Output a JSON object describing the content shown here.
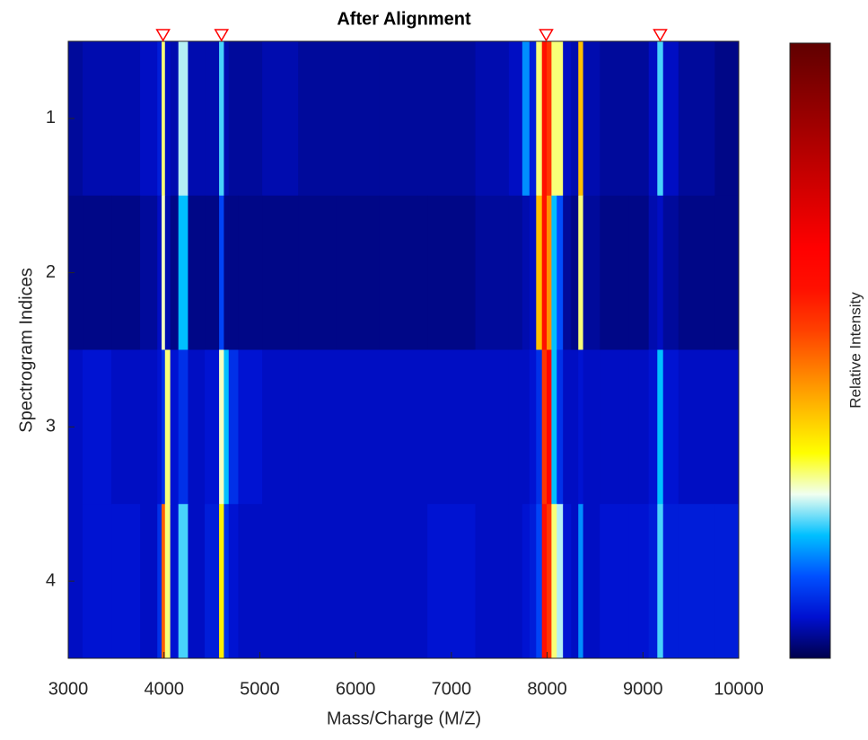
{
  "chart_data": {
    "type": "heatmap",
    "title": "After Alignment",
    "xlabel": "Mass/Charge (M/Z)",
    "ylabel": "Spectrogram Indices",
    "colorbar_label": "Relative Intensity",
    "x": [
      3000,
      3300,
      3600,
      3900,
      3960,
      3990,
      4030,
      4100,
      4200,
      4300,
      4550,
      4600,
      4650,
      4700,
      4850,
      5200,
      5600,
      6000,
      6500,
      7000,
      7500,
      7700,
      7780,
      7850,
      7920,
      7970,
      8020,
      8070,
      8130,
      8200,
      8300,
      8350,
      8400,
      8700,
      9000,
      9120,
      9180,
      9240,
      9500,
      10000
    ],
    "y": [
      1,
      2,
      3,
      4
    ],
    "z": [
      [
        0.04,
        0.05,
        0.05,
        0.06,
        0.08,
        0.3,
        0.06,
        0.05,
        0.25,
        0.05,
        0.05,
        0.22,
        0.05,
        0.04,
        0.04,
        0.05,
        0.04,
        0.04,
        0.04,
        0.04,
        0.05,
        0.06,
        0.17,
        0.08,
        0.3,
        0.6,
        0.55,
        0.3,
        0.3,
        0.06,
        0.05,
        0.4,
        0.05,
        0.04,
        0.04,
        0.06,
        0.22,
        0.06,
        0.04,
        0.03
      ],
      [
        0.03,
        0.03,
        0.03,
        0.04,
        0.06,
        0.28,
        0.05,
        0.03,
        0.2,
        0.03,
        0.03,
        0.12,
        0.03,
        0.03,
        0.03,
        0.03,
        0.03,
        0.03,
        0.03,
        0.03,
        0.04,
        0.04,
        0.05,
        0.06,
        0.4,
        0.6,
        0.45,
        0.2,
        0.13,
        0.04,
        0.03,
        0.3,
        0.04,
        0.03,
        0.03,
        0.05,
        0.06,
        0.04,
        0.03,
        0.03
      ],
      [
        0.06,
        0.07,
        0.06,
        0.06,
        0.07,
        0.1,
        0.3,
        0.07,
        0.1,
        0.06,
        0.07,
        0.28,
        0.2,
        0.1,
        0.07,
        0.06,
        0.06,
        0.06,
        0.06,
        0.06,
        0.06,
        0.06,
        0.06,
        0.07,
        0.1,
        0.55,
        0.65,
        0.2,
        0.1,
        0.06,
        0.06,
        0.07,
        0.06,
        0.06,
        0.06,
        0.07,
        0.2,
        0.07,
        0.06,
        0.06
      ],
      [
        0.06,
        0.07,
        0.07,
        0.06,
        0.1,
        0.5,
        0.3,
        0.07,
        0.22,
        0.06,
        0.08,
        0.35,
        0.1,
        0.07,
        0.06,
        0.06,
        0.06,
        0.06,
        0.06,
        0.07,
        0.06,
        0.06,
        0.07,
        0.08,
        0.12,
        0.6,
        0.55,
        0.3,
        0.25,
        0.07,
        0.06,
        0.17,
        0.06,
        0.07,
        0.07,
        0.08,
        0.22,
        0.08,
        0.08,
        0.08
      ]
    ],
    "clim": [
      0,
      1
    ],
    "colormap": [
      "#00004c",
      "#0010d0",
      "#0050ff",
      "#00c0ff",
      "#f0fff0",
      "#ffff00",
      "#ffc000",
      "#ff8000",
      "#ff4000",
      "#ff1000",
      "#ff0000",
      "#e00000",
      "#c00000",
      "#a00000",
      "#800000",
      "#600000"
    ],
    "peak_markers": [
      3990,
      4600,
      7990,
      9180
    ],
    "marker_color": "#ff0000",
    "xlim": [
      3000,
      10000
    ],
    "xticks": [
      3000,
      4000,
      5000,
      6000,
      7000,
      8000,
      9000,
      10000
    ],
    "ylim": [
      0.5,
      4.5
    ],
    "yticks": [
      1,
      2,
      3,
      4
    ],
    "y_reversed": true
  }
}
